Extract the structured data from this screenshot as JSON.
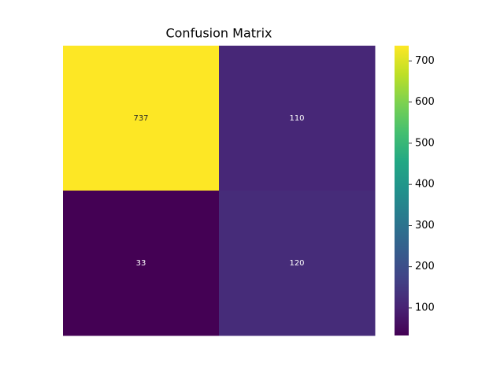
{
  "chart_data": {
    "type": "heatmap",
    "title": "Confusion Matrix",
    "values": [
      [
        737,
        110
      ],
      [
        33,
        120
      ]
    ],
    "colormap": "viridis",
    "colorbar": {
      "lim": [
        33,
        737
      ],
      "ticks": [
        100,
        200,
        300,
        400,
        500,
        600,
        700
      ]
    }
  }
}
